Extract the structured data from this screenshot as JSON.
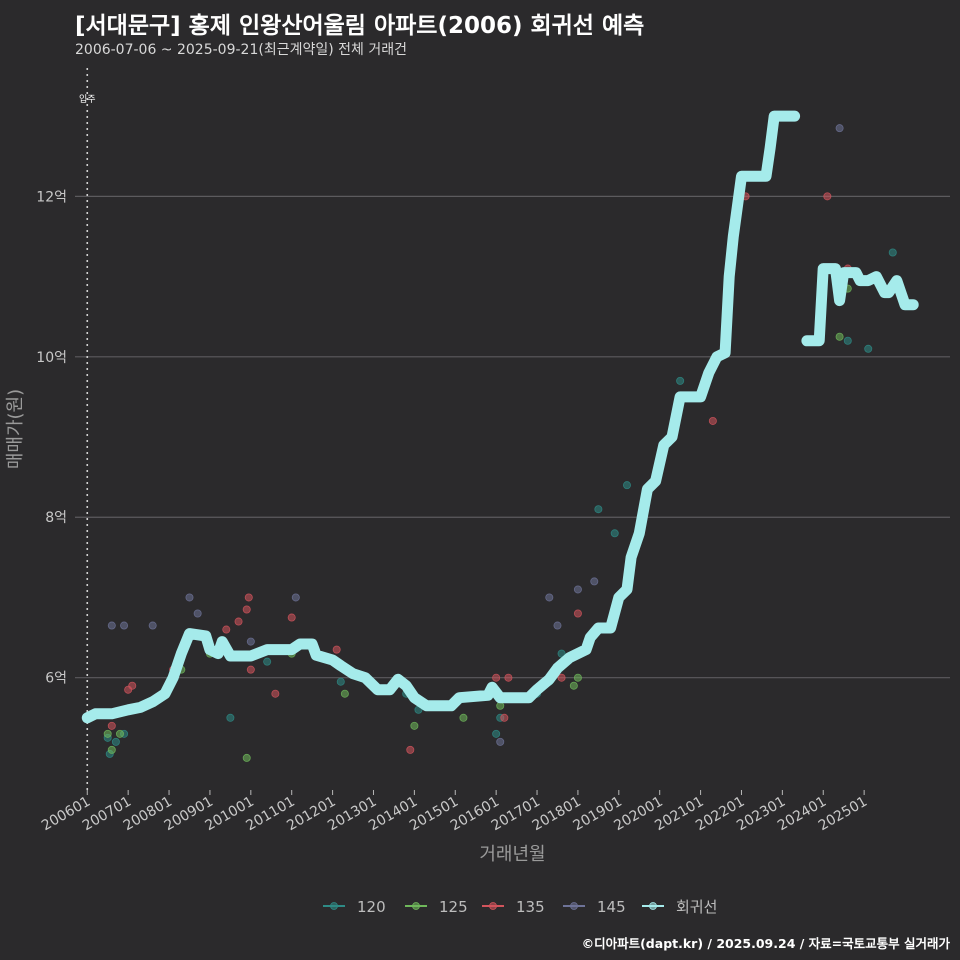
{
  "header": {
    "title": "[서대문구] 홍제 인왕산어울림 아파트(2006) 회귀선 예측",
    "subtitle": "2006-07-06 ~ 2025-09-21(최근계약일) 전체 거래건"
  },
  "caption": "©디아파트(dapt.kr) / 2025.09.24 / 자료=국토교통부 실거래가",
  "chart_data": {
    "type": "scatter",
    "xlabel": "거래년월",
    "ylabel": "매매가(원)",
    "x_ticks": [
      "200601",
      "200701",
      "200801",
      "200901",
      "201001",
      "201101",
      "201201",
      "201301",
      "201401",
      "201501",
      "201601",
      "201701",
      "201801",
      "201901",
      "202001",
      "202101",
      "202201",
      "202301",
      "202401",
      "202501"
    ],
    "x_range": [
      2005.7,
      2027.1
    ],
    "y_ticks": [
      {
        "value": 6,
        "label": "6억"
      },
      {
        "value": 8,
        "label": "8억"
      },
      {
        "value": 10,
        "label": "10억"
      },
      {
        "value": 12,
        "label": "12억"
      }
    ],
    "y_range": [
      4.6,
      13.6
    ],
    "grid": true,
    "legend_position": "bottom",
    "annotation": {
      "x": 2006.0,
      "label": "입주"
    },
    "series": [
      {
        "name": "120",
        "color": "#2e8b86",
        "points": [
          [
            2006.5,
            5.25
          ],
          [
            2006.55,
            5.05
          ],
          [
            2006.7,
            5.2
          ],
          [
            2006.9,
            5.3
          ],
          [
            2009.5,
            5.5
          ],
          [
            2010.4,
            6.2
          ],
          [
            2012.2,
            5.95
          ],
          [
            2013.8,
            5.8
          ],
          [
            2014.1,
            5.6
          ],
          [
            2016.0,
            5.3
          ],
          [
            2016.1,
            5.5
          ],
          [
            2017.0,
            5.8
          ],
          [
            2017.3,
            5.95
          ],
          [
            2017.6,
            6.3
          ],
          [
            2018.5,
            8.1
          ],
          [
            2018.9,
            7.8
          ],
          [
            2019.2,
            8.4
          ],
          [
            2020.5,
            9.7
          ],
          [
            2024.6,
            10.2
          ],
          [
            2025.1,
            10.1
          ],
          [
            2025.7,
            11.3
          ]
        ]
      },
      {
        "name": "125",
        "color": "#6fb85b",
        "points": [
          [
            2006.5,
            5.3
          ],
          [
            2006.6,
            5.1
          ],
          [
            2006.8,
            5.3
          ],
          [
            2008.3,
            6.1
          ],
          [
            2009.0,
            6.3
          ],
          [
            2009.9,
            5.0
          ],
          [
            2011.0,
            6.3
          ],
          [
            2012.3,
            5.8
          ],
          [
            2014.0,
            5.4
          ],
          [
            2015.2,
            5.5
          ],
          [
            2016.1,
            5.65
          ],
          [
            2017.2,
            5.95
          ],
          [
            2017.9,
            5.9
          ],
          [
            2018.0,
            6.0
          ],
          [
            2020.3,
            9.0
          ],
          [
            2023.6,
            10.2
          ],
          [
            2024.4,
            10.25
          ],
          [
            2024.6,
            10.85
          ]
        ]
      },
      {
        "name": "135",
        "color": "#d2545c",
        "points": [
          [
            2006.6,
            5.4
          ],
          [
            2007.0,
            5.85
          ],
          [
            2007.1,
            5.9
          ],
          [
            2008.1,
            6.1
          ],
          [
            2009.4,
            6.6
          ],
          [
            2009.7,
            6.7
          ],
          [
            2009.9,
            6.85
          ],
          [
            2009.95,
            7.0
          ],
          [
            2010.0,
            6.1
          ],
          [
            2010.6,
            5.8
          ],
          [
            2011.0,
            6.75
          ],
          [
            2012.1,
            6.35
          ],
          [
            2013.9,
            5.1
          ],
          [
            2016.0,
            6.0
          ],
          [
            2016.2,
            5.5
          ],
          [
            2016.3,
            6.0
          ],
          [
            2017.6,
            6.0
          ],
          [
            2018.0,
            6.8
          ],
          [
            2021.3,
            9.2
          ],
          [
            2022.1,
            12.0
          ],
          [
            2024.1,
            12.0
          ],
          [
            2024.6,
            11.1
          ]
        ]
      },
      {
        "name": "145",
        "color": "#6e7398",
        "points": [
          [
            2006.6,
            6.65
          ],
          [
            2006.9,
            6.65
          ],
          [
            2007.6,
            6.65
          ],
          [
            2008.5,
            7.0
          ],
          [
            2008.7,
            6.8
          ],
          [
            2010.0,
            6.45
          ],
          [
            2011.1,
            7.0
          ],
          [
            2013.8,
            5.9
          ],
          [
            2015.8,
            5.8
          ],
          [
            2016.1,
            5.2
          ],
          [
            2016.8,
            5.75
          ],
          [
            2017.3,
            7.0
          ],
          [
            2017.5,
            6.65
          ],
          [
            2018.0,
            7.1
          ],
          [
            2018.4,
            7.2
          ],
          [
            2024.4,
            12.85
          ]
        ]
      }
    ],
    "regression": {
      "name": "회귀선",
      "color": "#a5ebeb",
      "segments": [
        [
          [
            2006.0,
            5.5
          ],
          [
            2006.2,
            5.55
          ],
          [
            2006.6,
            5.55
          ],
          [
            2007.0,
            5.6
          ],
          [
            2007.3,
            5.63
          ],
          [
            2007.6,
            5.7
          ],
          [
            2007.9,
            5.8
          ],
          [
            2008.1,
            6.0
          ],
          [
            2008.3,
            6.3
          ],
          [
            2008.5,
            6.55
          ],
          [
            2008.9,
            6.52
          ],
          [
            2009.0,
            6.35
          ],
          [
            2009.2,
            6.3
          ],
          [
            2009.3,
            6.45
          ],
          [
            2009.5,
            6.27
          ],
          [
            2010.0,
            6.27
          ],
          [
            2010.4,
            6.35
          ],
          [
            2010.7,
            6.35
          ],
          [
            2011.0,
            6.35
          ],
          [
            2011.2,
            6.42
          ],
          [
            2011.5,
            6.42
          ],
          [
            2011.6,
            6.28
          ],
          [
            2012.0,
            6.22
          ],
          [
            2012.2,
            6.15
          ],
          [
            2012.5,
            6.05
          ],
          [
            2012.8,
            6.0
          ],
          [
            2013.1,
            5.85
          ],
          [
            2013.4,
            5.85
          ],
          [
            2013.6,
            5.98
          ],
          [
            2013.8,
            5.9
          ],
          [
            2014.0,
            5.75
          ],
          [
            2014.3,
            5.65
          ],
          [
            2014.9,
            5.65
          ],
          [
            2015.1,
            5.75
          ],
          [
            2015.8,
            5.78
          ],
          [
            2015.9,
            5.88
          ],
          [
            2016.1,
            5.75
          ],
          [
            2016.4,
            5.75
          ],
          [
            2016.8,
            5.75
          ],
          [
            2017.0,
            5.85
          ],
          [
            2017.3,
            5.98
          ],
          [
            2017.5,
            6.12
          ],
          [
            2017.8,
            6.25
          ],
          [
            2018.0,
            6.3
          ],
          [
            2018.2,
            6.35
          ],
          [
            2018.3,
            6.5
          ],
          [
            2018.5,
            6.62
          ],
          [
            2018.8,
            6.62
          ],
          [
            2019.0,
            7.0
          ],
          [
            2019.2,
            7.1
          ],
          [
            2019.3,
            7.5
          ],
          [
            2019.5,
            7.8
          ],
          [
            2019.7,
            8.35
          ],
          [
            2019.9,
            8.45
          ],
          [
            2020.1,
            8.9
          ],
          [
            2020.3,
            9.0
          ],
          [
            2020.5,
            9.5
          ],
          [
            2020.8,
            9.5
          ],
          [
            2021.0,
            9.5
          ],
          [
            2021.2,
            9.8
          ],
          [
            2021.4,
            10.0
          ],
          [
            2021.6,
            10.05
          ],
          [
            2021.7,
            11.0
          ],
          [
            2021.8,
            11.5
          ],
          [
            2022.0,
            12.25
          ],
          [
            2022.3,
            12.25
          ],
          [
            2022.6,
            12.25
          ],
          [
            2022.7,
            12.6
          ],
          [
            2022.8,
            13.0
          ],
          [
            2023.3,
            13.0
          ]
        ],
        [
          [
            2023.6,
            10.2
          ],
          [
            2023.9,
            10.2
          ],
          [
            2024.0,
            11.1
          ],
          [
            2024.3,
            11.1
          ],
          [
            2024.4,
            10.7
          ],
          [
            2024.5,
            11.05
          ],
          [
            2024.8,
            11.05
          ],
          [
            2024.9,
            10.95
          ],
          [
            2025.1,
            10.95
          ],
          [
            2025.3,
            11.0
          ],
          [
            2025.5,
            10.8
          ],
          [
            2025.6,
            10.8
          ],
          [
            2025.8,
            10.95
          ],
          [
            2026.0,
            10.65
          ],
          [
            2026.2,
            10.65
          ]
        ]
      ]
    }
  }
}
